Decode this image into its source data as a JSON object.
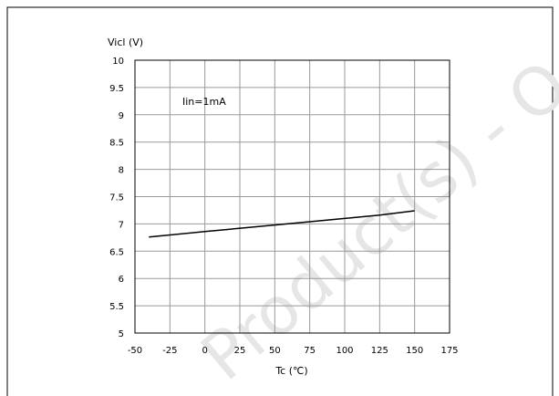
{
  "chart_data": {
    "type": "line",
    "title": "",
    "xlabel": "Tc (℃)",
    "ylabel": "Vicl (V)",
    "xlim": [
      -50,
      175
    ],
    "ylim": [
      5,
      10
    ],
    "x_ticks": [
      "-50",
      "-25",
      "0",
      "25",
      "50",
      "75",
      "100",
      "125",
      "150",
      "175"
    ],
    "y_ticks": [
      "5",
      "5.5",
      "6",
      "6.5",
      "7",
      "7.5",
      "8",
      "8.5",
      "9",
      "9.5",
      "10"
    ],
    "grid": true,
    "legend": "none",
    "annotation": "Iin=1mA",
    "watermark": "Product(s) - O",
    "colors": {
      "line": "#000000",
      "grid": "#999999",
      "watermark": "#e6e6e6"
    },
    "series": [
      {
        "x": [
          -40,
          0,
          50,
          100,
          125,
          150
        ],
        "values": [
          6.76,
          6.86,
          6.98,
          7.1,
          7.16,
          7.24
        ]
      }
    ]
  }
}
